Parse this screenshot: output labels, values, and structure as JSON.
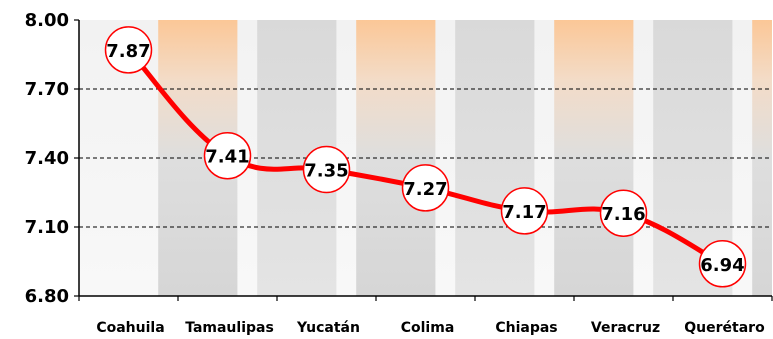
{
  "chart_data": {
    "type": "line",
    "categories": [
      "Coahuila",
      "Tamaulipas",
      "Yucatán",
      "Colima",
      "Chiapas",
      "Veracruz",
      "Querétaro"
    ],
    "values": [
      7.87,
      7.41,
      7.35,
      7.27,
      7.17,
      7.16,
      6.94
    ],
    "data_labels": [
      "7.87",
      "7.41",
      "7.35",
      "7.27",
      "7.17",
      "7.16",
      "6.94"
    ],
    "y_ticks": [
      "8.00",
      "7.70",
      "7.40",
      "7.10",
      "6.80"
    ],
    "ylim": [
      6.8,
      8.0
    ],
    "grid": true,
    "line_color": "#ff0000",
    "marker_fill": "#ffffff",
    "band_colors": [
      "#fbc797",
      "#d9d9d9"
    ]
  }
}
